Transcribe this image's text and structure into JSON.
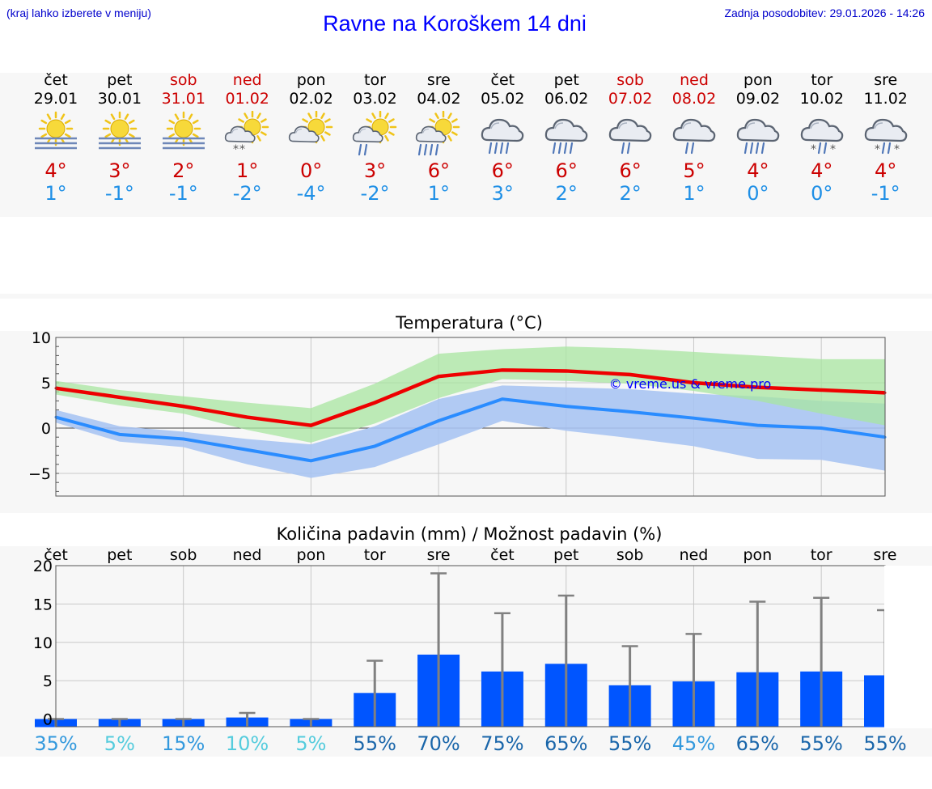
{
  "header": {
    "hint": "(kraj lahko izberete v meniju)",
    "title": "Ravne na Koroškem 14 dni",
    "updated": "Zadnja posodobitev: 29.01.2026 - 14:26"
  },
  "colors": {
    "title": "#0000ff",
    "weekend": "#cc0000",
    "max_temp": "#cc0000",
    "min_temp": "#1e8fe6",
    "max_band": "#a8e6a0",
    "min_band": "#a8c4f2",
    "precip_bar": "#0055ff",
    "error_bar": "#808080"
  },
  "days": [
    {
      "name": "čet",
      "date": "29.01",
      "weekend": false,
      "icon": "sun-fog-icon",
      "tmax": "4°",
      "tmin": "1°"
    },
    {
      "name": "pet",
      "date": "30.01",
      "weekend": false,
      "icon": "sun-fog-icon",
      "tmax": "3°",
      "tmin": "-1°"
    },
    {
      "name": "sob",
      "date": "31.01",
      "weekend": true,
      "icon": "sun-fog-icon",
      "tmax": "2°",
      "tmin": "-1°"
    },
    {
      "name": "ned",
      "date": "01.02",
      "weekend": true,
      "icon": "partly-cloudy-snow-icon",
      "tmax": "1°",
      "tmin": "-2°"
    },
    {
      "name": "pon",
      "date": "02.02",
      "weekend": false,
      "icon": "partly-cloudy-icon",
      "tmax": "0°",
      "tmin": "-4°"
    },
    {
      "name": "tor",
      "date": "03.02",
      "weekend": false,
      "icon": "partly-cloudy-light-rain-icon",
      "tmax": "3°",
      "tmin": "-2°"
    },
    {
      "name": "sre",
      "date": "04.02",
      "weekend": false,
      "icon": "partly-cloudy-rain-icon",
      "tmax": "6°",
      "tmin": "1°"
    },
    {
      "name": "čet",
      "date": "05.02",
      "weekend": false,
      "icon": "cloud-rain-icon",
      "tmax": "6°",
      "tmin": "3°"
    },
    {
      "name": "pet",
      "date": "06.02",
      "weekend": false,
      "icon": "cloud-rain-icon",
      "tmax": "6°",
      "tmin": "2°"
    },
    {
      "name": "sob",
      "date": "07.02",
      "weekend": true,
      "icon": "cloud-light-rain-icon",
      "tmax": "6°",
      "tmin": "2°"
    },
    {
      "name": "ned",
      "date": "08.02",
      "weekend": true,
      "icon": "cloud-light-rain-icon",
      "tmax": "5°",
      "tmin": "1°"
    },
    {
      "name": "pon",
      "date": "09.02",
      "weekend": false,
      "icon": "cloud-rain-icon",
      "tmax": "4°",
      "tmin": "0°"
    },
    {
      "name": "tor",
      "date": "10.02",
      "weekend": false,
      "icon": "cloud-sleet-icon",
      "tmax": "4°",
      "tmin": "0°"
    },
    {
      "name": "sre",
      "date": "11.02",
      "weekend": false,
      "icon": "cloud-sleet-icon",
      "tmax": "4°",
      "tmin": "-1°"
    }
  ],
  "chart_data": [
    {
      "type": "line",
      "title": "Temperatura (°C)",
      "watermark": "© vreme.us & vreme.pro",
      "ylim": [
        -7.5,
        10
      ],
      "yticks": [
        "10",
        "5",
        "0",
        "−5"
      ],
      "ytick_values": [
        10,
        5,
        0,
        -5
      ],
      "x": [
        0,
        1,
        2,
        3,
        4,
        5,
        6,
        7,
        8,
        9,
        10,
        11,
        12,
        13
      ],
      "series": [
        {
          "name": "max",
          "values": [
            4.4,
            3.4,
            2.4,
            1.2,
            0.3,
            2.8,
            5.7,
            6.4,
            6.3,
            5.9,
            5.0,
            4.5,
            4.2,
            3.9
          ],
          "band_low": [
            3.7,
            2.5,
            1.6,
            -0.2,
            -1.6,
            0.5,
            3.3,
            5.4,
            5.2,
            4.9,
            4.1,
            3.0,
            1.6,
            0.3
          ],
          "band_high": [
            5.2,
            4.2,
            3.5,
            2.8,
            2.2,
            4.9,
            8.2,
            8.7,
            9.0,
            8.8,
            8.4,
            8.0,
            7.6,
            7.6
          ]
        },
        {
          "name": "min",
          "values": [
            1.2,
            -0.7,
            -1.2,
            -2.4,
            -3.6,
            -2.0,
            0.8,
            3.2,
            2.4,
            1.8,
            1.1,
            0.3,
            0.0,
            -1.0
          ],
          "band_low": [
            0.6,
            -1.5,
            -2.1,
            -4.0,
            -5.5,
            -4.3,
            -1.8,
            0.8,
            -0.3,
            -1.1,
            -2.0,
            -3.4,
            -3.5,
            -4.7
          ],
          "band_high": [
            2.0,
            0.2,
            -0.4,
            -1.2,
            -1.8,
            0.2,
            3.2,
            4.7,
            4.5,
            4.3,
            3.8,
            3.5,
            3.0,
            2.7
          ]
        }
      ]
    },
    {
      "type": "bar",
      "title": "Količina padavin (mm) / Možnost padavin (%)",
      "categories": [
        "čet",
        "pet",
        "sob",
        "ned",
        "pon",
        "tor",
        "sre",
        "čet",
        "pet",
        "sob",
        "ned",
        "pon",
        "tor",
        "sre"
      ],
      "ylim": [
        -1,
        20
      ],
      "yticks": [
        "20",
        "15",
        "10",
        "5",
        "0"
      ],
      "ytick_values": [
        20,
        15,
        10,
        5,
        0
      ],
      "values": [
        0,
        0,
        0,
        0.2,
        0,
        3.4,
        8.4,
        6.2,
        7.2,
        4.4,
        4.9,
        6.1,
        6.2,
        5.7
      ],
      "error_max": [
        0,
        0,
        0,
        0.8,
        0,
        7.6,
        19.0,
        13.8,
        16.1,
        9.5,
        11.1,
        15.3,
        15.8,
        14.2
      ],
      "probability": [
        "35%",
        "5%",
        "15%",
        "10%",
        "5%",
        "55%",
        "70%",
        "75%",
        "65%",
        "55%",
        "45%",
        "65%",
        "55%",
        "55%"
      ],
      "probability_colors": [
        "#3399dd",
        "#55ccdd",
        "#3399dd",
        "#55ccdd",
        "#55ccdd",
        "#1a66aa",
        "#1a66aa",
        "#1a66aa",
        "#1a66aa",
        "#1a66aa",
        "#3399dd",
        "#1a66aa",
        "#1a66aa",
        "#1a66aa"
      ]
    }
  ]
}
